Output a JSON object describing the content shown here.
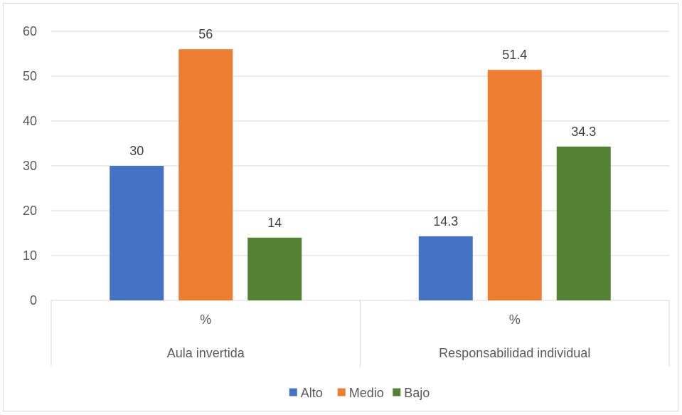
{
  "chart_data": {
    "type": "bar",
    "groups": [
      {
        "sublabel": "%",
        "label": "Aula invertida"
      },
      {
        "sublabel": "%",
        "label": "Responsabilidad individual"
      }
    ],
    "series": [
      {
        "name": "Alto",
        "color": "#4472c4",
        "values": [
          30,
          14.3
        ]
      },
      {
        "name": "Medio",
        "color": "#ed7d31",
        "values": [
          56,
          51.4
        ]
      },
      {
        "name": "Bajo",
        "color": "#548235",
        "values": [
          14,
          34.3
        ]
      }
    ],
    "ylim": [
      0,
      60
    ],
    "yticks": [
      0,
      10,
      20,
      30,
      40,
      50,
      60
    ],
    "grid": true,
    "legend_position": "bottom",
    "title": "",
    "xlabel": "",
    "ylabel": ""
  }
}
